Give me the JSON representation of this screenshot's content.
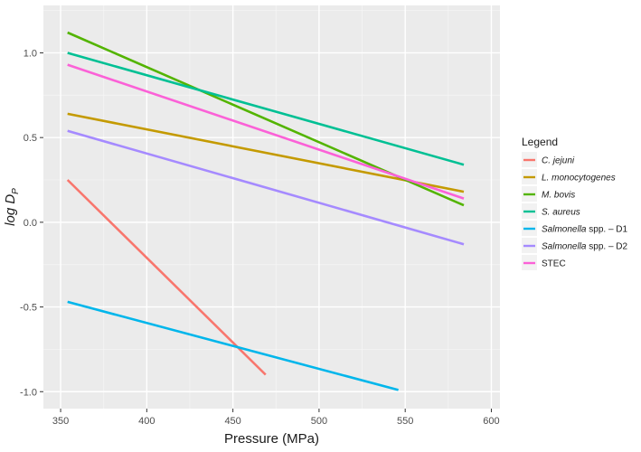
{
  "chart_data": {
    "type": "line",
    "xlabel": "Pressure (MPa)",
    "ylabel": "log D",
    "ylabel_subscript": "P",
    "xlim": [
      340,
      605
    ],
    "ylim": [
      -1.1,
      1.28
    ],
    "x_ticks": [
      350,
      400,
      450,
      500,
      550,
      600
    ],
    "y_ticks": [
      -1.0,
      -0.5,
      0.0,
      0.5,
      1.0
    ],
    "x_tick_labels": [
      "350",
      "400",
      "450",
      "500",
      "550",
      "600"
    ],
    "y_tick_labels": [
      "-1.0",
      "-0.5",
      "0.0",
      "0.5",
      "1.0"
    ],
    "grid": true,
    "legend": {
      "title": "Legend",
      "placement": "right"
    },
    "series": [
      {
        "name": "C. jejuni",
        "italic_part": "C. jejuni",
        "rest": "",
        "color": "#F8766D",
        "x": [
          354,
          469
        ],
        "y": [
          0.25,
          -0.9
        ]
      },
      {
        "name": "L. monocytogenes",
        "italic_part": "L. monocytogenes",
        "rest": "",
        "color": "#C49A00",
        "x": [
          354,
          584
        ],
        "y": [
          0.64,
          0.18
        ]
      },
      {
        "name": "M. bovis",
        "italic_part": "M. bovis",
        "rest": "",
        "color": "#53B400",
        "x": [
          354,
          584
        ],
        "y": [
          1.12,
          0.1
        ]
      },
      {
        "name": "S. aureus",
        "italic_part": "S. aureus",
        "rest": "",
        "color": "#00C094",
        "x": [
          354,
          584
        ],
        "y": [
          1.0,
          0.34
        ]
      },
      {
        "name": "Salmonella spp. – D1",
        "italic_part": "Salmonella",
        "rest": " spp. – D1",
        "color": "#00B6EB",
        "x": [
          354,
          546
        ],
        "y": [
          -0.47,
          -0.99
        ]
      },
      {
        "name": "Salmonella spp. – D2",
        "italic_part": "Salmonella",
        "rest": " spp. – D2",
        "color": "#A58AFF",
        "x": [
          354,
          584
        ],
        "y": [
          0.54,
          -0.13
        ]
      },
      {
        "name": "STEC",
        "italic_part": "",
        "rest": "STEC",
        "color": "#FB61D7",
        "x": [
          354,
          584
        ],
        "y": [
          0.93,
          0.14
        ]
      }
    ]
  }
}
